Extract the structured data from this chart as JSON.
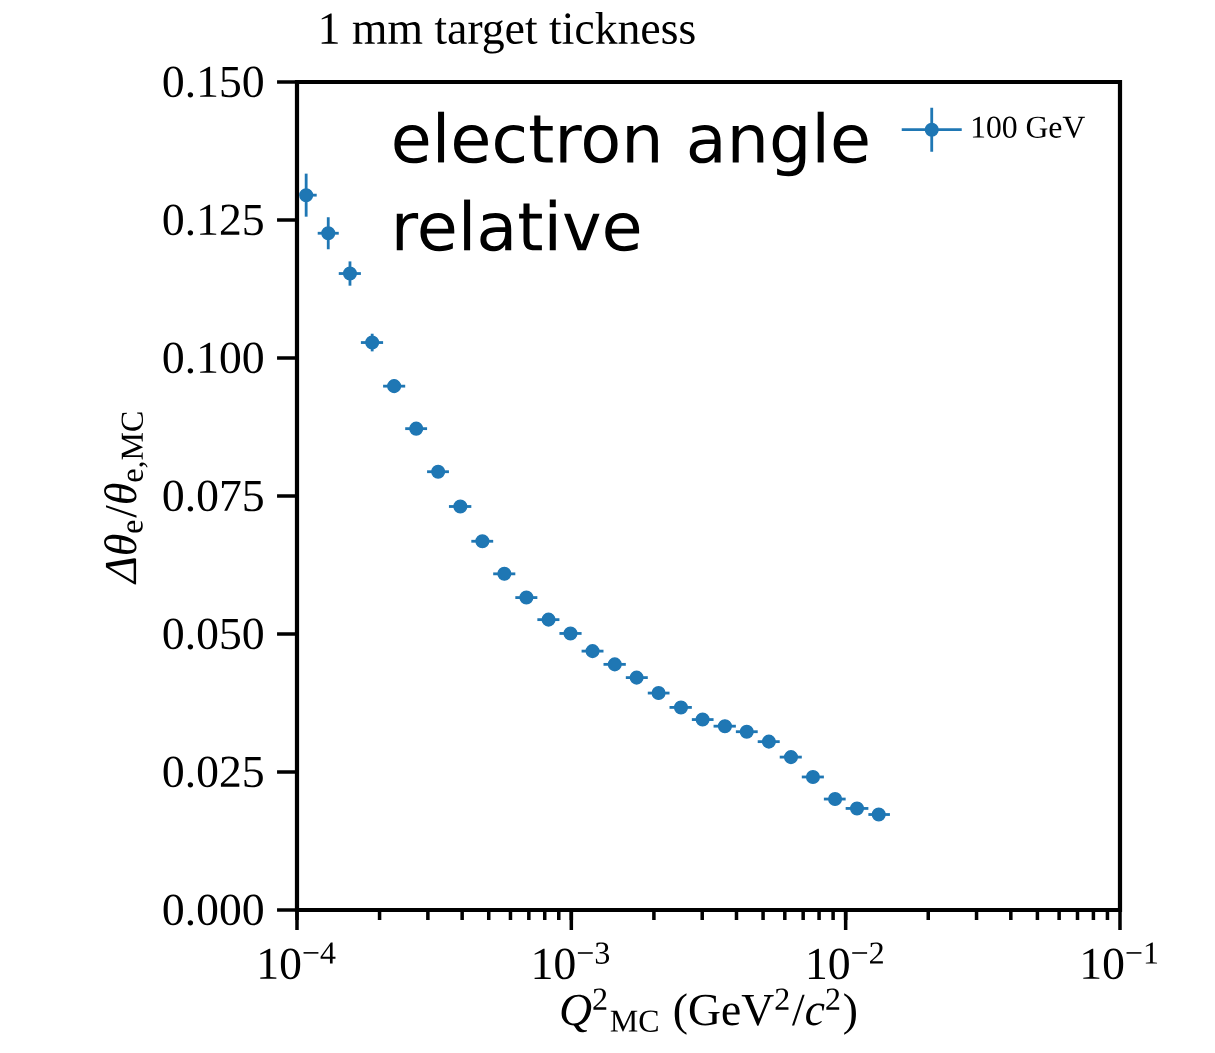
{
  "chart_data": {
    "type": "scatter",
    "title": "1 mm target tickness",
    "xlabel": "*Q*$^{2}$$_{MC}$ (GeV$^{2}$/*c*$^{2}$)",
    "ylabel": "*Δθ*$_{e}$/*θ*$_{e,MC}$",
    "annotations": [
      "electron angle relative"
    ],
    "log": "x",
    "legend": "top right",
    "marker": "circle",
    "xlim": [
      0.0001,
      0.1
    ],
    "xticks": [
      {
        "value": 0.0001,
        "label": "10$^{−4}$"
      },
      {
        "value": 0.001,
        "label": "10$^{−3}$"
      },
      {
        "value": 0.01,
        "label": "10$^{−2}$"
      },
      {
        "value": 0.1,
        "label": "10$^{−1}$"
      }
    ],
    "ylim": [
      0,
      0.15
    ],
    "yticks": [
      {
        "value": 0,
        "label": "0.000"
      },
      {
        "value": 0.025,
        "label": "0.025"
      },
      {
        "value": 0.05,
        "label": "0.050"
      },
      {
        "value": 0.075,
        "label": "0.075"
      },
      {
        "value": 0.1,
        "label": "0.100"
      },
      {
        "value": 0.125,
        "label": "0.125"
      },
      {
        "value": 0.15,
        "label": "0.150"
      }
    ],
    "series": [
      {
        "name": "100 GeV",
        "color": "#1f77b4",
        "x": [
          0.000108,
          0.00013,
          0.000156,
          0.000188,
          0.000226,
          0.000272,
          0.000327,
          0.000394,
          0.000474,
          0.00057,
          0.000686,
          0.000826,
          0.000993,
          0.001195,
          0.00144,
          0.00173,
          0.00208,
          0.00251,
          0.00301,
          0.00363,
          0.00436,
          0.00525,
          0.00632,
          0.0076,
          0.00915,
          0.011,
          0.0132
        ],
        "values": [
          0.1295,
          0.1226,
          0.1153,
          0.1028,
          0.0949,
          0.0872,
          0.0794,
          0.0731,
          0.0668,
          0.0609,
          0.0566,
          0.0526,
          0.0501,
          0.0469,
          0.0445,
          0.0421,
          0.0393,
          0.0367,
          0.0345,
          0.0333,
          0.0323,
          0.0305,
          0.0277,
          0.0241,
          0.0201,
          0.0184,
          0.0173
        ],
        "errors": [
          0.0039,
          0.0029,
          0.0022,
          0.0016,
          0.0012,
          0.0007,
          null,
          null,
          null,
          null,
          null,
          null,
          null,
          null,
          null,
          null,
          null,
          null,
          null,
          null,
          null,
          null,
          null,
          null,
          null,
          null,
          null
        ],
        "xerrors": [
          [
            0.000104,
            0.000118
          ],
          [
            0.000119,
            0.000142
          ],
          [
            0.000142,
            0.000171
          ],
          [
            0.000171,
            0.000206
          ],
          [
            0.000206,
            0.000248
          ],
          [
            0.000248,
            0.000298
          ],
          [
            0.000298,
            0.000358
          ],
          [
            0.000358,
            0.000432
          ],
          [
            0.000432,
            0.000519
          ],
          [
            0.000519,
            0.000625
          ],
          [
            0.000625,
            0.000752
          ],
          [
            0.000752,
            0.000905
          ],
          [
            0.000905,
            0.00109
          ],
          [
            0.00109,
            0.00131
          ],
          [
            0.00131,
            0.00158
          ],
          [
            0.00158,
            0.0019
          ],
          [
            0.0019,
            0.00228
          ],
          [
            0.00228,
            0.00275
          ],
          [
            0.00275,
            0.0033
          ],
          [
            0.0033,
            0.00398
          ],
          [
            0.00398,
            0.00478
          ],
          [
            0.00478,
            0.00575
          ],
          [
            0.00575,
            0.00692
          ],
          [
            0.00692,
            0.00833
          ],
          [
            0.00833,
            0.01
          ],
          [
            0.01,
            0.0121
          ],
          [
            0.0121,
            0.0145
          ]
        ]
      }
    ]
  }
}
